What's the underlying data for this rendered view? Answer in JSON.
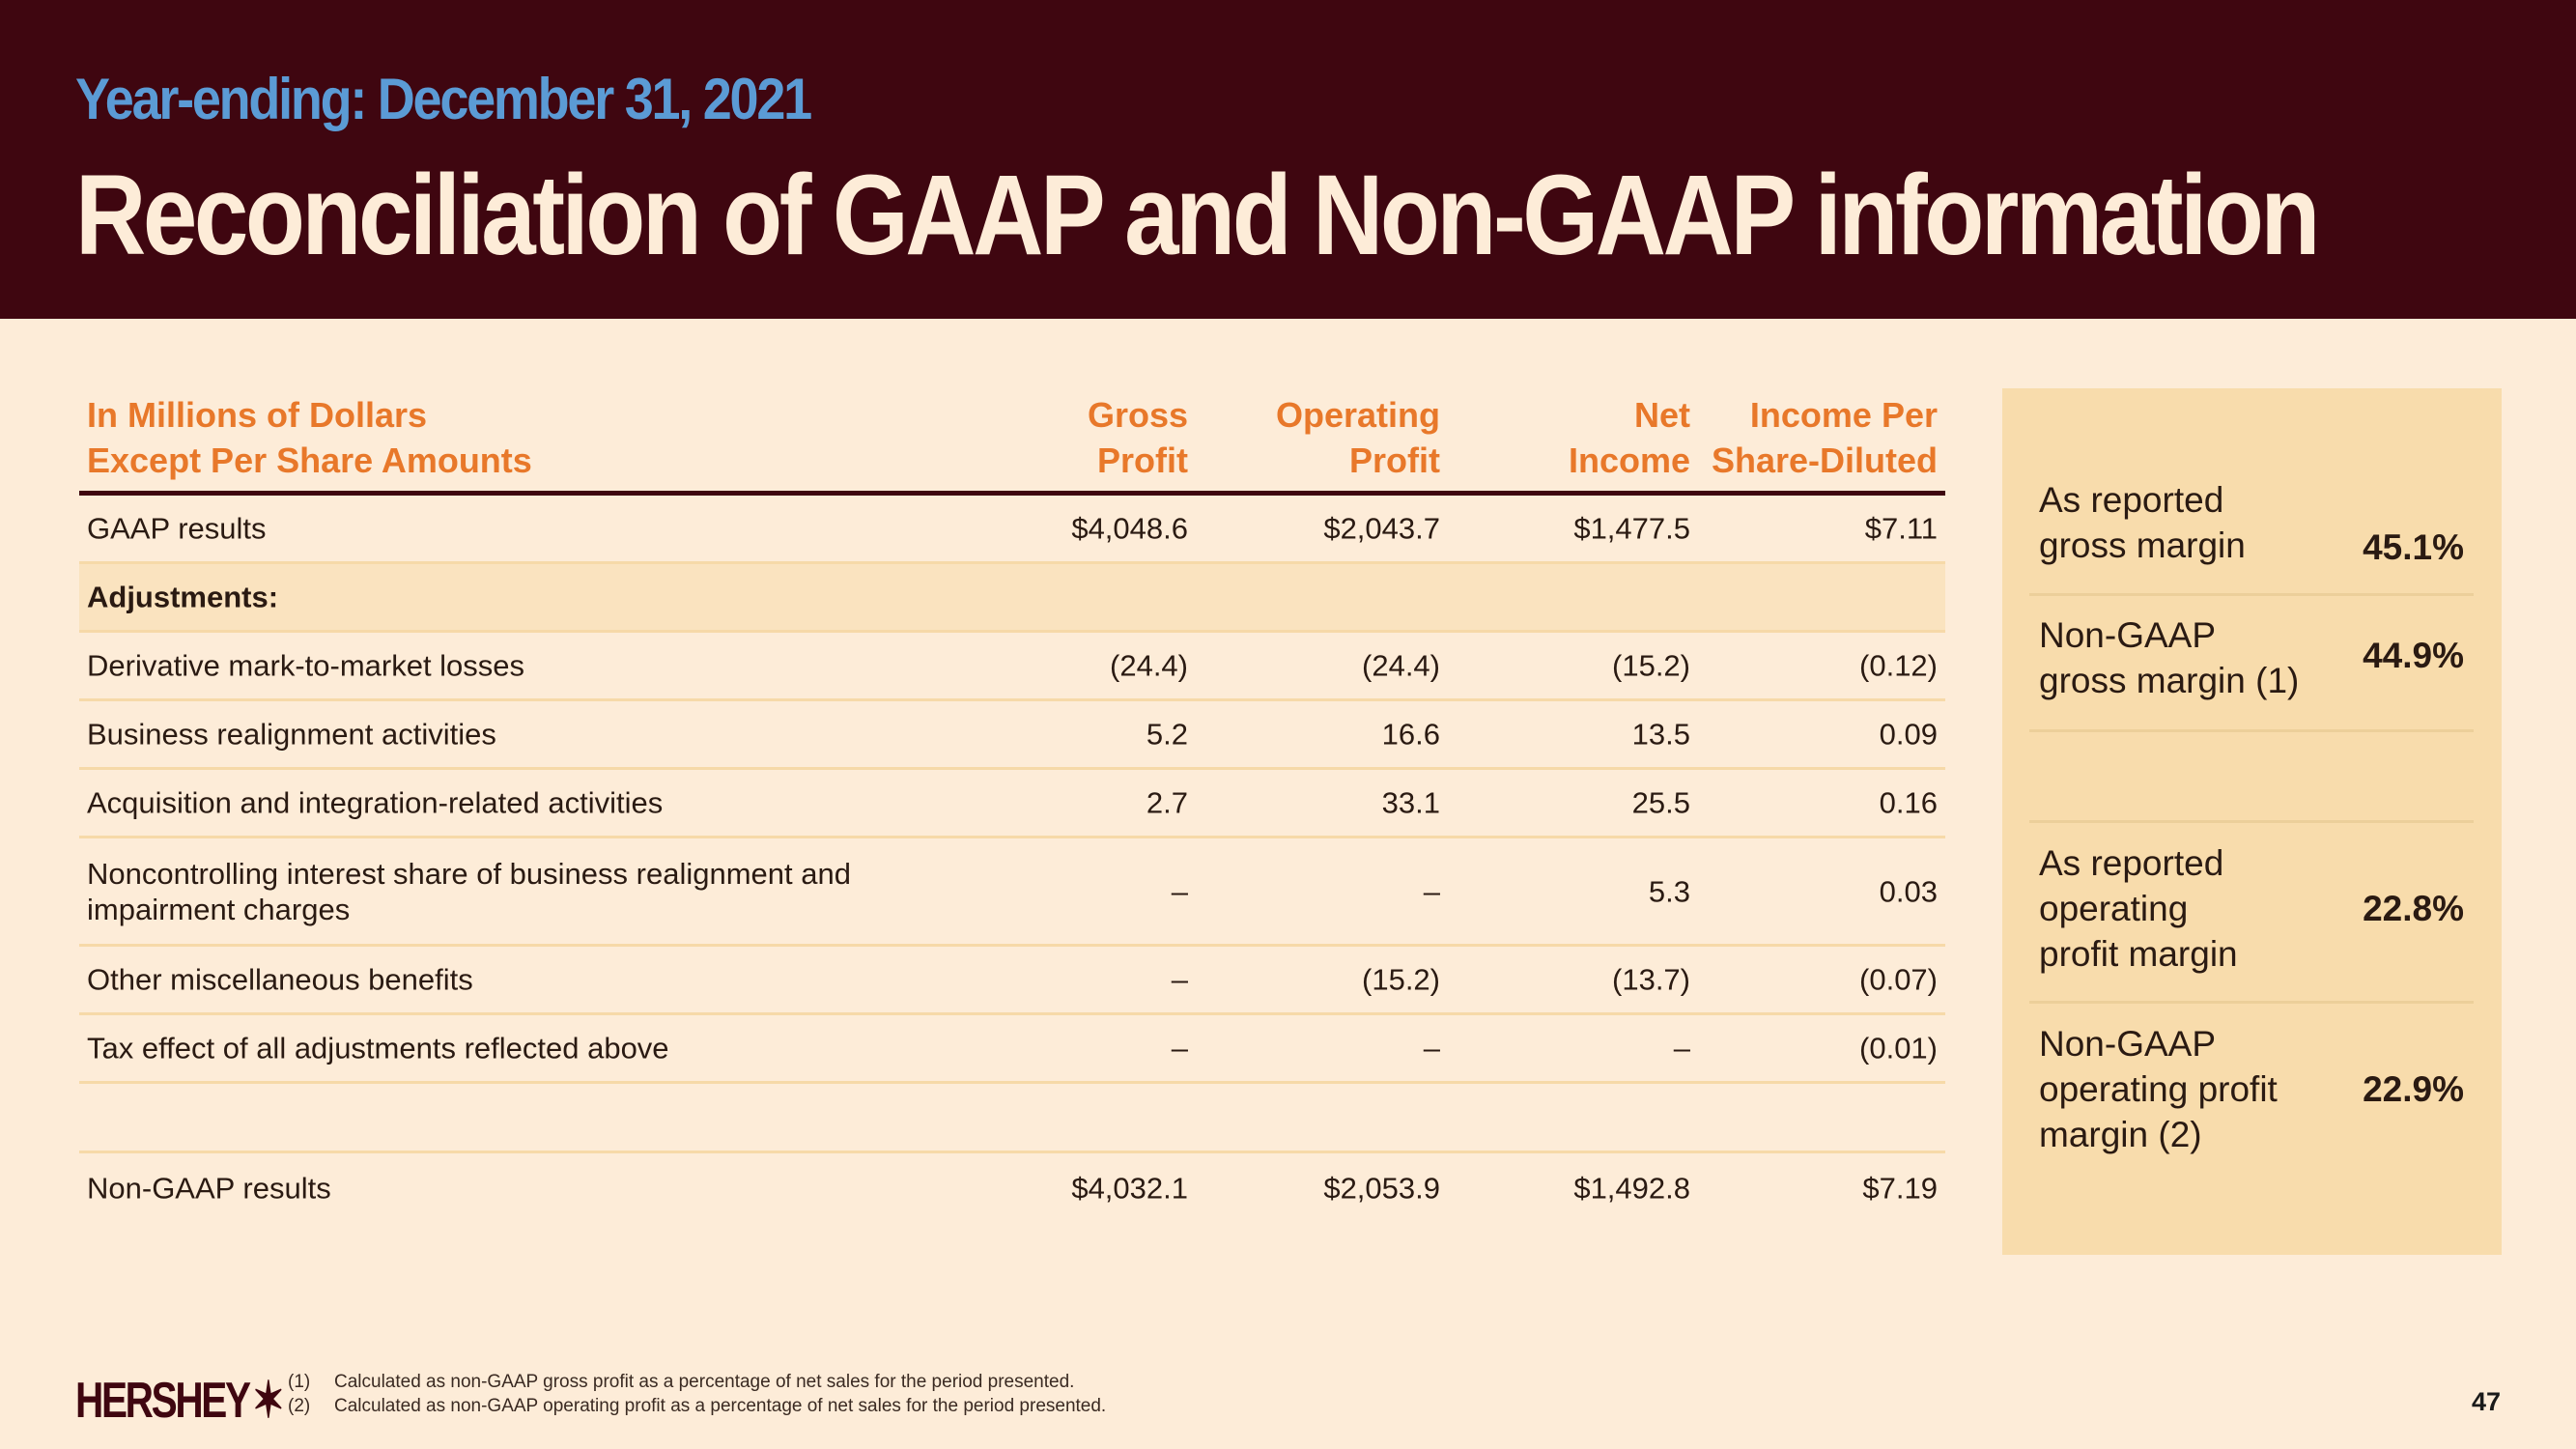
{
  "header": {
    "subtitle": "Year-ending: December 31, 2021",
    "title": "Reconciliation of GAAP and Non-GAAP information"
  },
  "table": {
    "columns": {
      "label_line1": "In Millions of Dollars",
      "label_line2": "Except Per Share Amounts",
      "c1_line1": "Gross",
      "c1_line2": "Profit",
      "c2_line1": "Operating",
      "c2_line2": "Profit",
      "c3_line1": "Net",
      "c3_line2": "Income",
      "c4_line1": "Income Per",
      "c4_line2": "Share-Diluted"
    },
    "rows": [
      {
        "label": "GAAP results",
        "v1": "$4,048.6",
        "v2": "$2,043.7",
        "v3": "$1,477.5",
        "v4": "$7.11"
      },
      {
        "label": "Adjustments:"
      },
      {
        "label": "Derivative mark-to-market losses",
        "v1": "(24.4)",
        "v2": "(24.4)",
        "v3": "(15.2)",
        "v4": "(0.12)"
      },
      {
        "label": "Business realignment activities",
        "v1": "5.2",
        "v2": "16.6",
        "v3": "13.5",
        "v4": "0.09"
      },
      {
        "label": "Acquisition and integration-related activities",
        "v1": "2.7",
        "v2": "33.1",
        "v3": "25.5",
        "v4": "0.16"
      },
      {
        "label": "Noncontrolling interest share of business realignment and impairment charges",
        "v1": "–",
        "v2": "–",
        "v3": "5.3",
        "v4": "0.03"
      },
      {
        "label": "Other miscellaneous benefits",
        "v1": "–",
        "v2": "(15.2)",
        "v3": "(13.7)",
        "v4": "(0.07)"
      },
      {
        "label": "Tax effect of all adjustments reflected above",
        "v1": "–",
        "v2": "–",
        "v3": "–",
        "v4": "(0.01)"
      },
      {
        "label": "Non-GAAP results",
        "v1": "$4,032.1",
        "v2": "$2,053.9",
        "v3": "$1,492.8",
        "v4": "$7.19"
      }
    ]
  },
  "panel": {
    "items": [
      {
        "label_line1": "As reported",
        "label_line2": "gross margin",
        "value": "45.1%"
      },
      {
        "label_line1": "Non-GAAP",
        "label_line2": "gross margin (1)",
        "value": "44.9%"
      },
      {
        "label_line1": "As reported",
        "label_line2": "operating",
        "label_line3": "profit margin",
        "value": "22.8%"
      },
      {
        "label_line1": "Non-GAAP",
        "label_line2": "operating profit",
        "label_line3": "margin (2)",
        "value": "22.9%"
      }
    ]
  },
  "footer": {
    "logo": "HERSHEY",
    "notes": [
      {
        "num": "(1)",
        "text": "Calculated as non-GAAP gross profit as a percentage of net sales for the period presented."
      },
      {
        "num": "(2)",
        "text": "Calculated as non-GAAP operating profit as a percentage of net sales for the period presented."
      }
    ],
    "page_number": "47"
  },
  "colors": {
    "header_bg": "#3f0610",
    "subtitle": "#5b9bd5",
    "accent_orange": "#e8782a",
    "panel_bg": "#f8dcac",
    "page_bg": "#fdecd8"
  }
}
